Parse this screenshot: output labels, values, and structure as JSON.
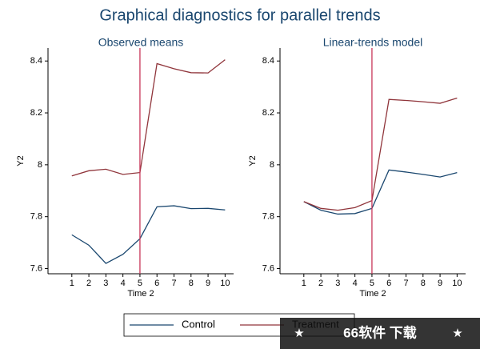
{
  "title": "Graphical diagnostics for parallel trends",
  "watermark": {
    "left": "★",
    "text": "66软件 下载",
    "right": "★"
  },
  "chart_data": [
    {
      "type": "line",
      "title": "Observed means",
      "xlabel": "Time 2",
      "ylabel": "Y2",
      "x": [
        1,
        2,
        3,
        4,
        5,
        6,
        7,
        8,
        9,
        10
      ],
      "xlim": [
        -0.4,
        10.5
      ],
      "xticks": [
        1,
        2,
        3,
        4,
        5,
        6,
        7,
        8,
        9,
        10
      ],
      "ylim": [
        7.58,
        8.45
      ],
      "yticks": [
        7.6,
        7.8,
        8,
        8.2,
        8.4
      ],
      "vline": 5,
      "vline_color": "#c8385a",
      "series": [
        {
          "name": "Control",
          "color": "#1a476f",
          "values": [
            7.73,
            7.69,
            7.62,
            7.655,
            7.715,
            7.838,
            7.842,
            7.831,
            7.832,
            7.826
          ]
        },
        {
          "name": "Treatment",
          "color": "#90353b",
          "values": [
            7.957,
            7.977,
            7.983,
            7.963,
            7.97,
            8.39,
            8.37,
            8.355,
            8.354,
            8.405
          ]
        }
      ]
    },
    {
      "type": "line",
      "title": "Linear-trends model",
      "xlabel": "Time 2",
      "ylabel": "Y2",
      "x": [
        1,
        2,
        3,
        4,
        5,
        6,
        7,
        8,
        9,
        10
      ],
      "xlim": [
        -0.4,
        10.5
      ],
      "xticks": [
        1,
        2,
        3,
        4,
        5,
        6,
        7,
        8,
        9,
        10
      ],
      "ylim": [
        7.58,
        8.45
      ],
      "yticks": [
        7.6,
        7.8,
        8,
        8.2,
        8.4
      ],
      "vline": 5,
      "vline_color": "#c8385a",
      "series": [
        {
          "color": "#1a476f",
          "values": [
            7.858,
            7.825,
            7.81,
            7.812,
            7.832,
            7.98,
            7.972,
            7.963,
            7.953,
            7.97
          ]
        },
        {
          "color": "#90353b",
          "values": [
            7.858,
            7.832,
            7.825,
            7.835,
            7.862,
            8.252,
            8.248,
            8.243,
            8.237,
            8.257
          ]
        }
      ]
    }
  ]
}
